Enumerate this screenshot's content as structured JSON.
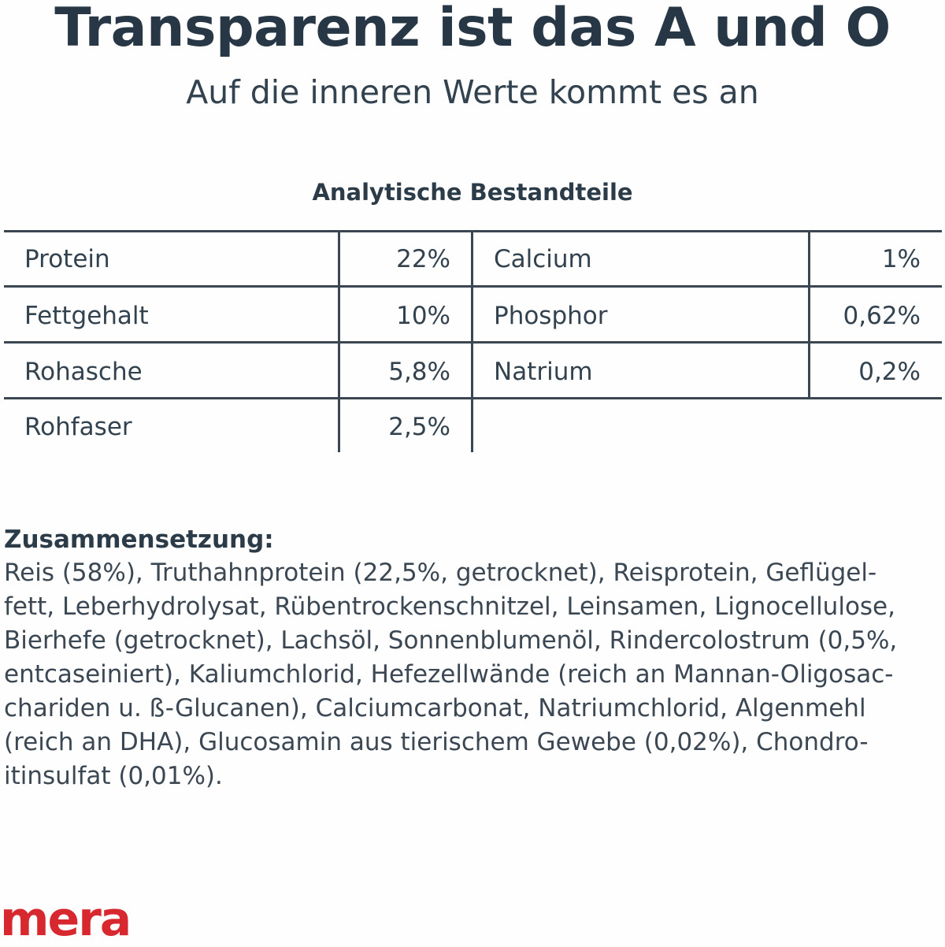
{
  "header": {
    "title": "Transparenz ist das A und O",
    "subtitle": "Auf die inneren Werte kommt es an"
  },
  "analysis": {
    "title": "Analytische Bestandteile",
    "left": [
      {
        "label": "Protein",
        "value": "22%"
      },
      {
        "label": "Fettgehalt",
        "value": "10%"
      },
      {
        "label": "Rohasche",
        "value": "5,8%"
      },
      {
        "label": "Rohfaser",
        "value": "2,5%"
      }
    ],
    "right": [
      {
        "label": "Calcium",
        "value": "1%"
      },
      {
        "label": "Phosphor",
        "value": "0,62%"
      },
      {
        "label": "Natrium",
        "value": "0,2%"
      }
    ]
  },
  "composition": {
    "heading": "Zusammensetzung:",
    "lines": [
      "Reis (58%), Truthahnprotein (22,5%, getrocknet), Reisprotein, Geflügel-",
      "fett, Leberhydrolysat, Rübentrockenschnitzel, Leinsamen, Lignocellulose,",
      "Bierhefe (getrocknet), Lachsöl, Sonnenblumenöl, Rindercolostrum (0,5%,",
      "entcaseiniert), Kaliumchlorid, Hefezellwände (reich an Mannan-Oligosac-",
      "chariden u. ß-Glucanen), Calciumcarbonat, Natriumchlorid, Algenmehl",
      "(reich an DHA), Glucosamin aus tierischem Gewebe (0,02%), Chondro-",
      "itinsulfat (0,01%)."
    ]
  },
  "brand": {
    "logo_text": "mera",
    "color": "#d8282f"
  },
  "colors": {
    "text": "#2b3b48",
    "lines": "#3a4652",
    "background": "#fefefe"
  }
}
